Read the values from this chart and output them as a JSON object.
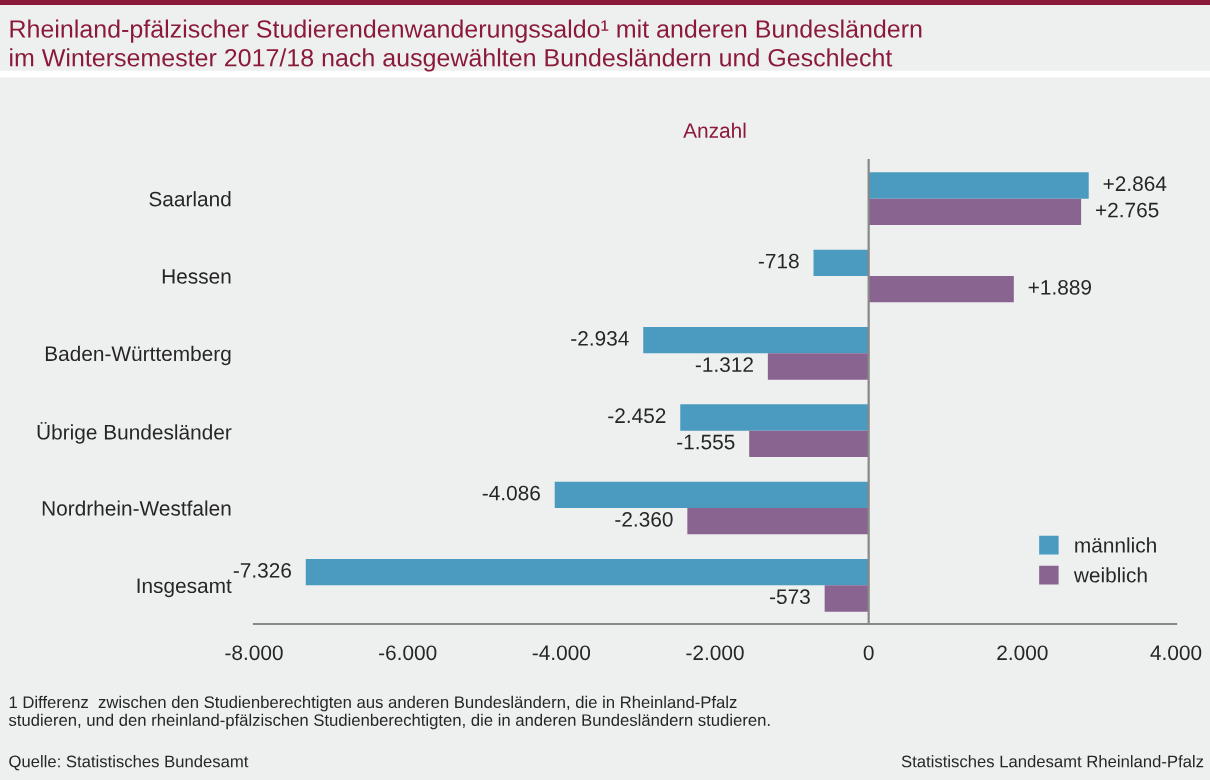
{
  "chart_data": {
    "type": "bar",
    "orientation": "horizontal",
    "title": "Rheinland-pfälzischer Studierendenwanderungssaldo¹ mit anderen Bundesländern\nim Wintersemester 2017/18 nach ausgewählten Bundesländern und Geschlecht",
    "xlabel": "Anzahl",
    "categories": [
      "Saarland",
      "Hessen",
      "Baden-Württemberg",
      "Übrige Bundesländer",
      "Nordrhein-Westfalen",
      "Insgesamt"
    ],
    "series": [
      {
        "name": "männlich",
        "color": "#4a9bbf",
        "values": [
          2864,
          -718,
          -2934,
          -2452,
          -4086,
          -7326
        ],
        "value_labels": [
          "+2.864",
          "-718",
          "-2.934",
          "-2.452",
          "-4.086",
          "-7.326"
        ]
      },
      {
        "name": "weiblich",
        "color": "#8a6490",
        "values": [
          2765,
          1889,
          -1312,
          -1555,
          -2360,
          -573
        ],
        "value_labels": [
          "+2.765",
          "+1.889",
          "-1.312",
          "-1.555",
          "-2.360",
          "-573"
        ]
      }
    ],
    "xlim": [
      -8000,
      4000
    ],
    "xticks": [
      {
        "value": -8000,
        "label": "-8.000"
      },
      {
        "value": -6000,
        "label": "-6.000"
      },
      {
        "value": -4000,
        "label": "-4.000"
      },
      {
        "value": -2000,
        "label": "-2.000"
      },
      0,
      {
        "value": 2000,
        "label": "2.000"
      },
      {
        "value": 4000,
        "label": "4.000"
      }
    ],
    "legend": "bottom right",
    "annotations": [
      "1 Differenz  zwischen den Studienberechtigten aus anderen Bundesländern, die in Rheinland-Pfalz\nstudieren, und den rheinland-pfälzischen Studienberechtigten, die in anderen Bundesländern studieren.",
      "Quelle: Statistisches Bundesamt",
      "Statistisches Landesamt Rheinland-Pfalz"
    ]
  }
}
